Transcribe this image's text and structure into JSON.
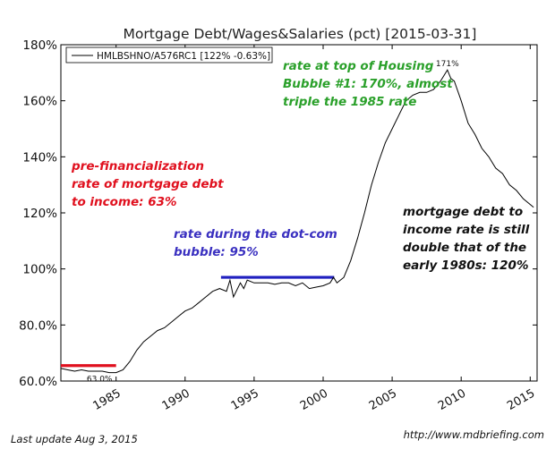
{
  "chart_data": {
    "type": "line",
    "title": "Mortgage Debt/Wages&Salaries (pct) [2015-03-31]",
    "legend": {
      "label": "HMLBSHNO/A576RC1 [122% -0.63%]",
      "position": "top-left"
    },
    "ylim": [
      60,
      180
    ],
    "xlim": [
      1981.0,
      2015.5
    ],
    "y_ticks": [
      {
        "value": 60,
        "label": "60.0%"
      },
      {
        "value": 80,
        "label": "80.0%"
      },
      {
        "value": 100,
        "label": "100%"
      },
      {
        "value": 120,
        "label": "120%"
      },
      {
        "value": 140,
        "label": "140%"
      },
      {
        "value": 160,
        "label": "160%"
      },
      {
        "value": 180,
        "label": "180%"
      }
    ],
    "x_ticks": [
      {
        "value": 1985,
        "label": "1985"
      },
      {
        "value": 1990,
        "label": "1990"
      },
      {
        "value": 1995,
        "label": "1995"
      },
      {
        "value": 2000,
        "label": "2000"
      },
      {
        "value": 2005,
        "label": "2005"
      },
      {
        "value": 2010,
        "label": "2010"
      },
      {
        "value": 2015,
        "label": "2015"
      }
    ],
    "series": [
      {
        "name": "HMLBSHNO/A576RC1",
        "color": "#000000",
        "x": [
          1981.0,
          1981.5,
          1982.0,
          1982.5,
          1983.0,
          1983.5,
          1984.0,
          1984.5,
          1985.0,
          1985.5,
          1986.0,
          1986.5,
          1987.0,
          1987.5,
          1988.0,
          1988.5,
          1989.0,
          1989.5,
          1990.0,
          1990.5,
          1991.0,
          1991.5,
          1992.0,
          1992.5,
          1993.0,
          1993.25,
          1993.5,
          1994.0,
          1994.25,
          1994.5,
          1995.0,
          1995.5,
          1996.0,
          1996.5,
          1997.0,
          1997.5,
          1998.0,
          1998.5,
          1999.0,
          1999.5,
          2000.0,
          2000.5,
          2000.75,
          2001.0,
          2001.5,
          2002.0,
          2002.5,
          2003.0,
          2003.5,
          2004.0,
          2004.5,
          2005.0,
          2005.5,
          2006.0,
          2006.5,
          2007.0,
          2007.5,
          2008.0,
          2008.5,
          2009.0,
          2009.25,
          2009.5,
          2010.0,
          2010.5,
          2011.0,
          2011.5,
          2012.0,
          2012.5,
          2013.0,
          2013.5,
          2014.0,
          2014.5,
          2015.0,
          2015.25
        ],
        "values": [
          64.5,
          64,
          63.5,
          64,
          63.5,
          63.5,
          63.5,
          63,
          63,
          64,
          67,
          71,
          74,
          76,
          78,
          79,
          81,
          83,
          85,
          86,
          88,
          90,
          92,
          93,
          92,
          96,
          90,
          95,
          93,
          96,
          95,
          95,
          95,
          94.5,
          95,
          95,
          94,
          95,
          93,
          93.5,
          94,
          95,
          97,
          95,
          97,
          103,
          111,
          120,
          130,
          138,
          145,
          150,
          155,
          160,
          162,
          163,
          163,
          164,
          167,
          171,
          168,
          167,
          160,
          152,
          148,
          143,
          140,
          136,
          134,
          130,
          128,
          125,
          123,
          122
        ]
      }
    ],
    "reference_lines": [
      {
        "name": "pre-financialization",
        "color": "#e0101e",
        "x": [
          1981.0,
          1985.0
        ],
        "y": 65.5
      },
      {
        "name": "dot-com",
        "color": "#2020c0",
        "x": [
          1992.6,
          2000.8
        ],
        "y": 97
      }
    ],
    "annotations": {
      "low_point": {
        "label": "63.0%",
        "x": 1983.8,
        "y": 63.0
      },
      "peak_point": {
        "label": "171%",
        "x": 2009.0,
        "y": 171
      },
      "pre_financialization": {
        "lines": [
          "pre-financialization",
          "rate of mortgage debt",
          "to income: 63%"
        ],
        "color": "#e0101e"
      },
      "dotcom": {
        "lines": [
          "rate during the dot-com",
          "bubble: 95%"
        ],
        "color": "#3a30c0"
      },
      "housing_peak": {
        "lines": [
          "rate at top of Housing",
          "Bubble #1: 170%, almost",
          "triple the 1985 rate"
        ],
        "color": "#2aa02a"
      },
      "current": {
        "lines": [
          "mortgage debt to",
          "income rate is still",
          "double that of the",
          "early 1980s: 120%"
        ],
        "color": "#111111"
      }
    }
  },
  "footer": {
    "last_update": "Last update Aug  3, 2015",
    "url": "http://www.mdbriefing.com"
  }
}
